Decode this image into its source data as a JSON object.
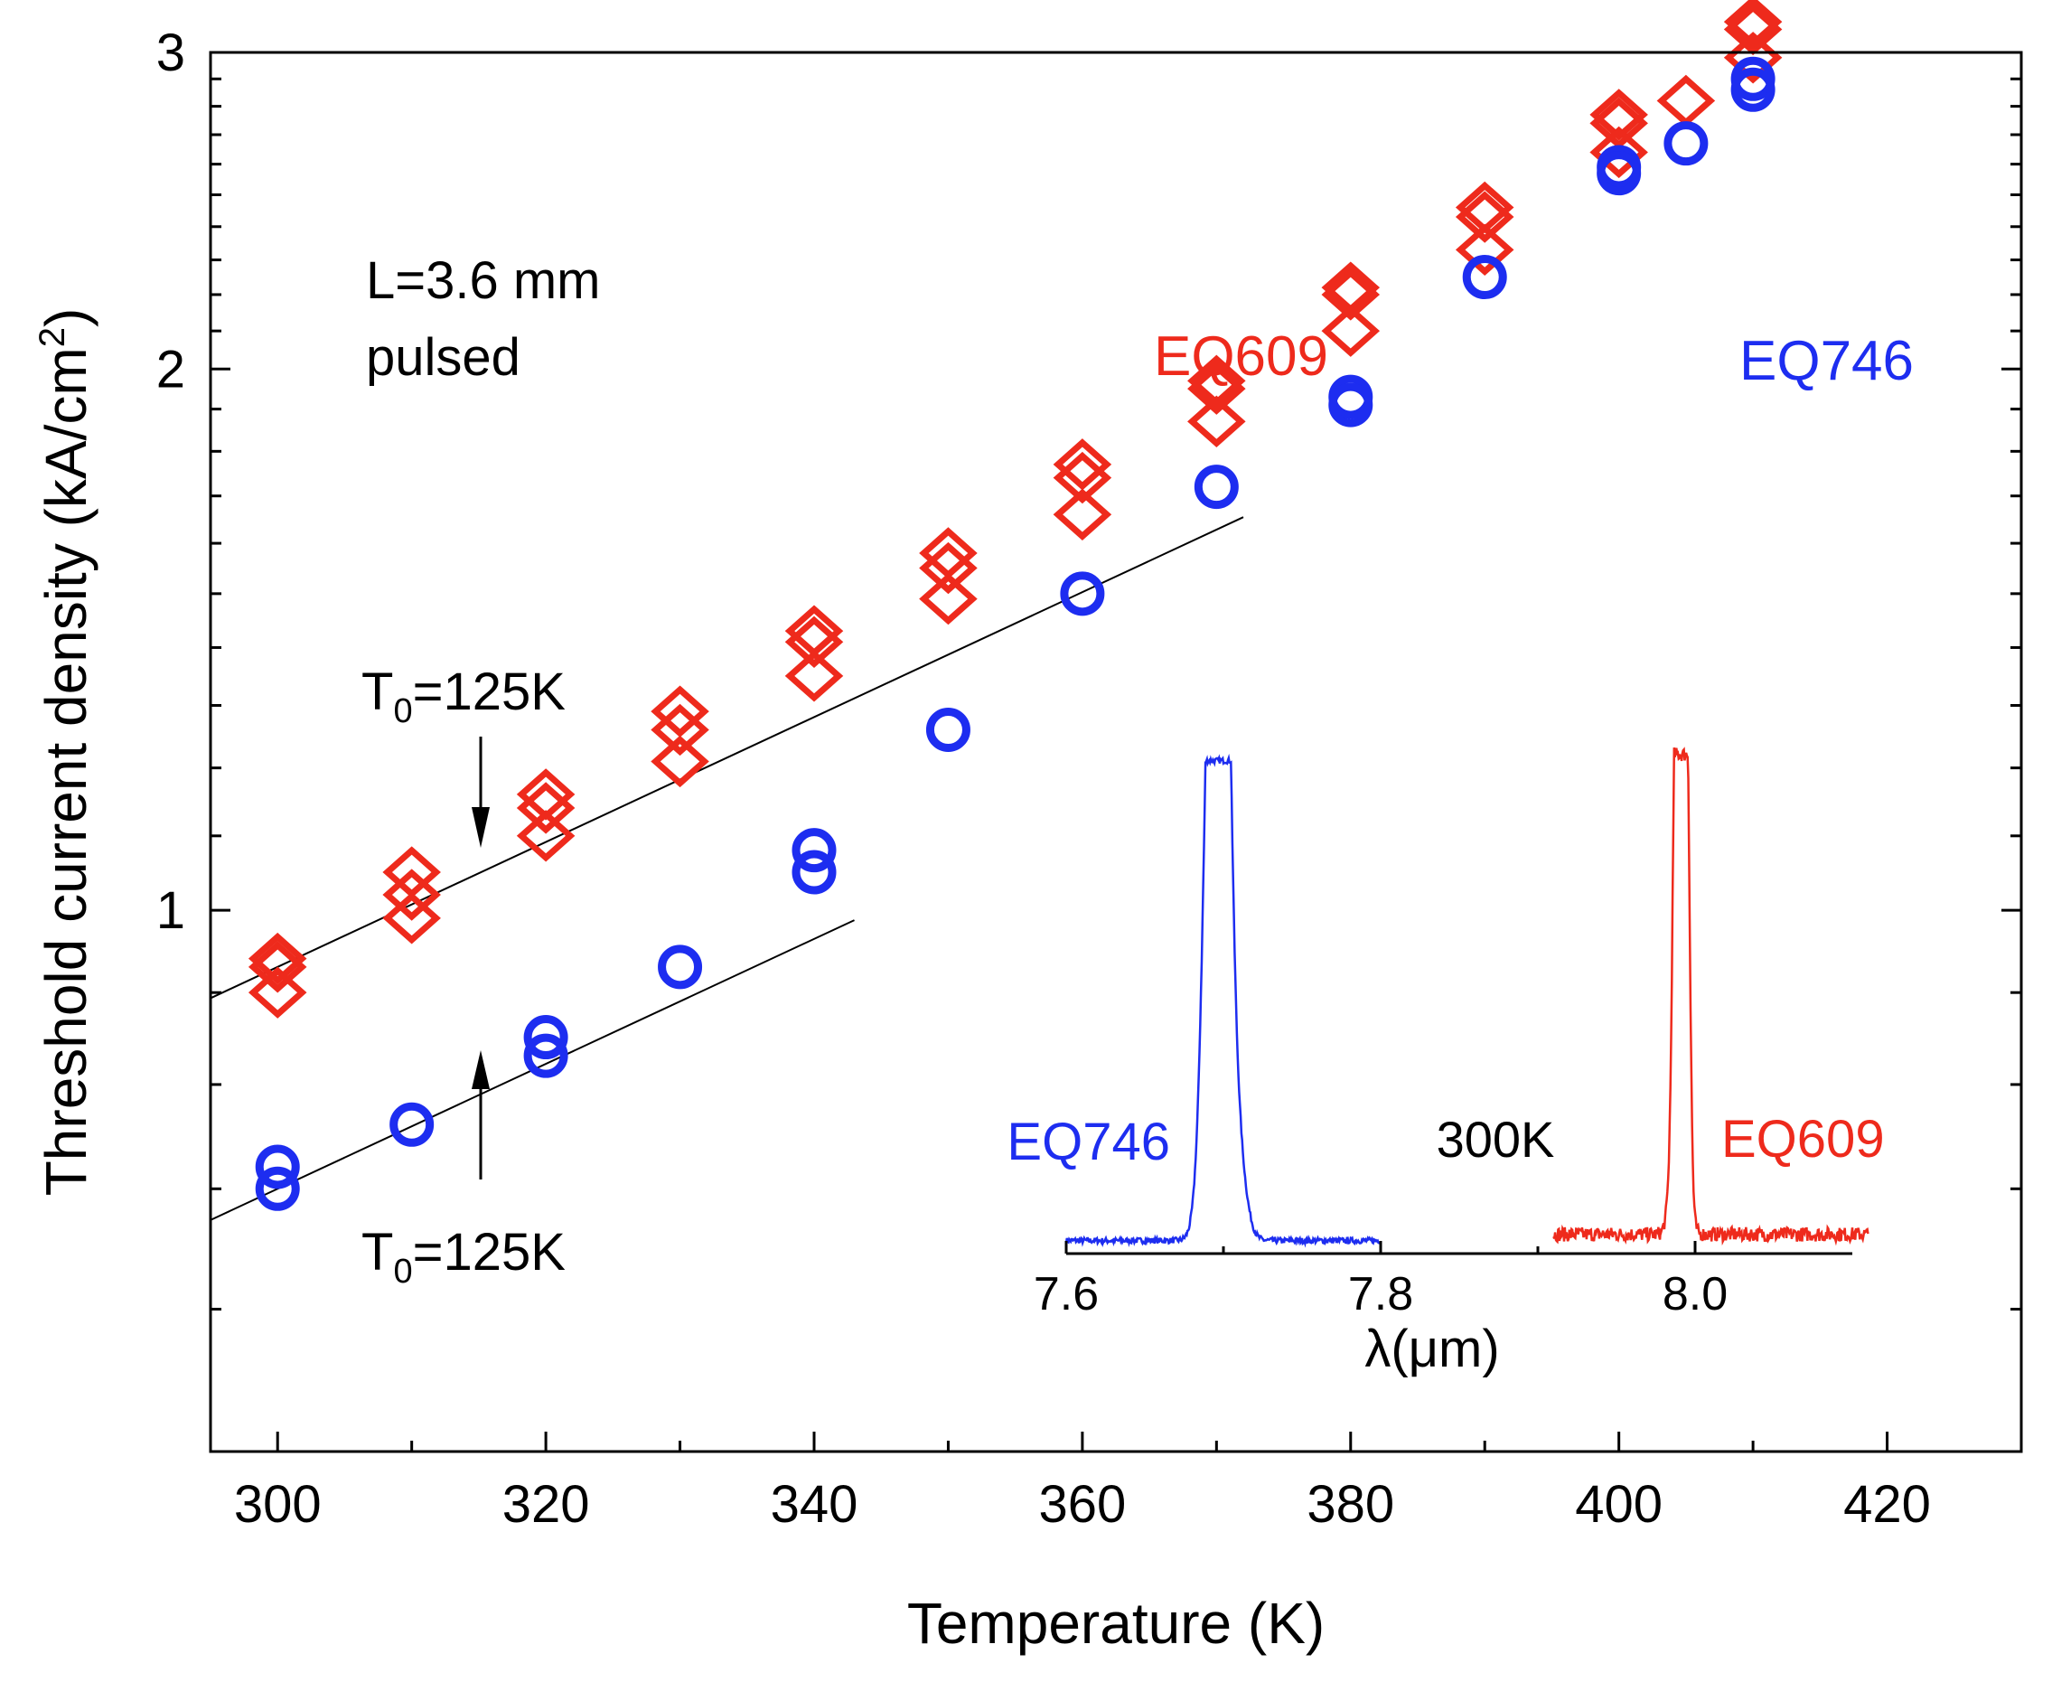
{
  "chart_data": {
    "type": "scatter",
    "title": "",
    "xlabel": "Temperature (K)",
    "ylabel": {
      "main": "Threshold current density (kA/cm",
      "sup": "2",
      "close": ")"
    },
    "xlim": [
      295,
      430
    ],
    "ylim": [
      0.5,
      3
    ],
    "yscale": "log",
    "xticks": [
      300,
      320,
      340,
      360,
      380,
      400,
      420
    ],
    "yticks": [
      1,
      2,
      3
    ],
    "yminor_ticks": [
      0.6,
      0.7,
      0.8,
      0.9,
      1.1,
      1.2,
      1.3,
      1.4,
      1.5,
      1.6,
      1.7,
      1.8,
      1.9,
      2.1,
      2.2,
      2.3,
      2.4,
      2.5,
      2.6,
      2.7,
      2.8,
      2.9
    ],
    "grid": false,
    "legend": "none",
    "annotations": {
      "device": [
        "L=3.6 mm",
        "pulsed"
      ],
      "t0_upper": {
        "base": "T",
        "sub": "0",
        "rest": "=125K"
      },
      "t0_lower": {
        "base": "T",
        "sub": "0",
        "rest": "=125K"
      }
    },
    "series": [
      {
        "name": "EQ609",
        "marker": "diamond",
        "color": "#ee2a1c",
        "points": [
          [
            300,
            0.94
          ],
          [
            300,
            0.93
          ],
          [
            300,
            0.9
          ],
          [
            310,
            1.05
          ],
          [
            310,
            1.02
          ],
          [
            310,
            0.99
          ],
          [
            320,
            1.16
          ],
          [
            320,
            1.14
          ],
          [
            320,
            1.1
          ],
          [
            330,
            1.29
          ],
          [
            330,
            1.26
          ],
          [
            330,
            1.21
          ],
          [
            340,
            1.43
          ],
          [
            340,
            1.41
          ],
          [
            340,
            1.35
          ],
          [
            350,
            1.58
          ],
          [
            350,
            1.55
          ],
          [
            350,
            1.49
          ],
          [
            360,
            1.77
          ],
          [
            360,
            1.74
          ],
          [
            360,
            1.66
          ],
          [
            370,
            1.97
          ],
          [
            370,
            1.95
          ],
          [
            370,
            1.87
          ],
          [
            380,
            2.22
          ],
          [
            380,
            2.2
          ],
          [
            380,
            2.1
          ],
          [
            390,
            2.46
          ],
          [
            390,
            2.43
          ],
          [
            390,
            2.33
          ],
          [
            400,
            2.77
          ],
          [
            400,
            2.74
          ],
          [
            400,
            2.64
          ],
          [
            405,
            2.82
          ],
          [
            410,
            3.12
          ],
          [
            410,
            3.09
          ],
          [
            410,
            2.98
          ]
        ]
      },
      {
        "name": "EQ746",
        "marker": "circle",
        "color": "#1d2df0",
        "points": [
          [
            300,
            0.72
          ],
          [
            300,
            0.7
          ],
          [
            310,
            0.76
          ],
          [
            320,
            0.85
          ],
          [
            320,
            0.83
          ],
          [
            330,
            0.93
          ],
          [
            340,
            1.08
          ],
          [
            340,
            1.05
          ],
          [
            350,
            1.26
          ],
          [
            360,
            1.5
          ],
          [
            370,
            1.72
          ],
          [
            380,
            1.93
          ],
          [
            380,
            1.91
          ],
          [
            390,
            2.25
          ],
          [
            400,
            2.59
          ],
          [
            400,
            2.57
          ],
          [
            405,
            2.67
          ],
          [
            410,
            2.9
          ],
          [
            410,
            2.86
          ]
        ]
      }
    ],
    "fit_lines": [
      {
        "label": "T0=125K",
        "T0": 125,
        "x": [
          295,
          372
        ],
        "y_at_300": 0.93
      },
      {
        "label": "T0=125K",
        "T0": 125,
        "x": [
          295,
          343
        ],
        "y_at_300": 0.7
      }
    ],
    "inset": {
      "type": "line",
      "xlabel": "λ(μm)",
      "xlim": [
        7.6,
        8.1
      ],
      "xticks": [
        7.6,
        7.8,
        8.0
      ],
      "xtick_labels": [
        "7.6",
        "7.8",
        "8.0"
      ],
      "temperature_label": "300K",
      "series": [
        {
          "name": "EQ746",
          "color": "#1d2df0",
          "x_range": [
            7.6,
            7.8
          ],
          "peaks": [
            {
              "center": 7.693,
              "height": 1.0,
              "width": 0.005
            },
            {
              "center": 7.7,
              "height": 0.92,
              "width": 0.004
            },
            {
              "center": 7.697,
              "height": 0.62,
              "width": 0.007
            },
            {
              "center": 7.707,
              "height": 0.18,
              "width": 0.006
            }
          ]
        },
        {
          "name": "EQ609",
          "color": "#ee2a1c",
          "x_range": [
            7.91,
            8.11
          ],
          "peaks": [
            {
              "center": 7.988,
              "height": 0.9,
              "width": 0.002
            },
            {
              "center": 7.992,
              "height": 1.0,
              "width": 0.0018
            },
            {
              "center": 7.995,
              "height": 0.75,
              "width": 0.0018
            },
            {
              "center": 7.99,
              "height": 0.4,
              "width": 0.004
            }
          ]
        }
      ]
    }
  }
}
